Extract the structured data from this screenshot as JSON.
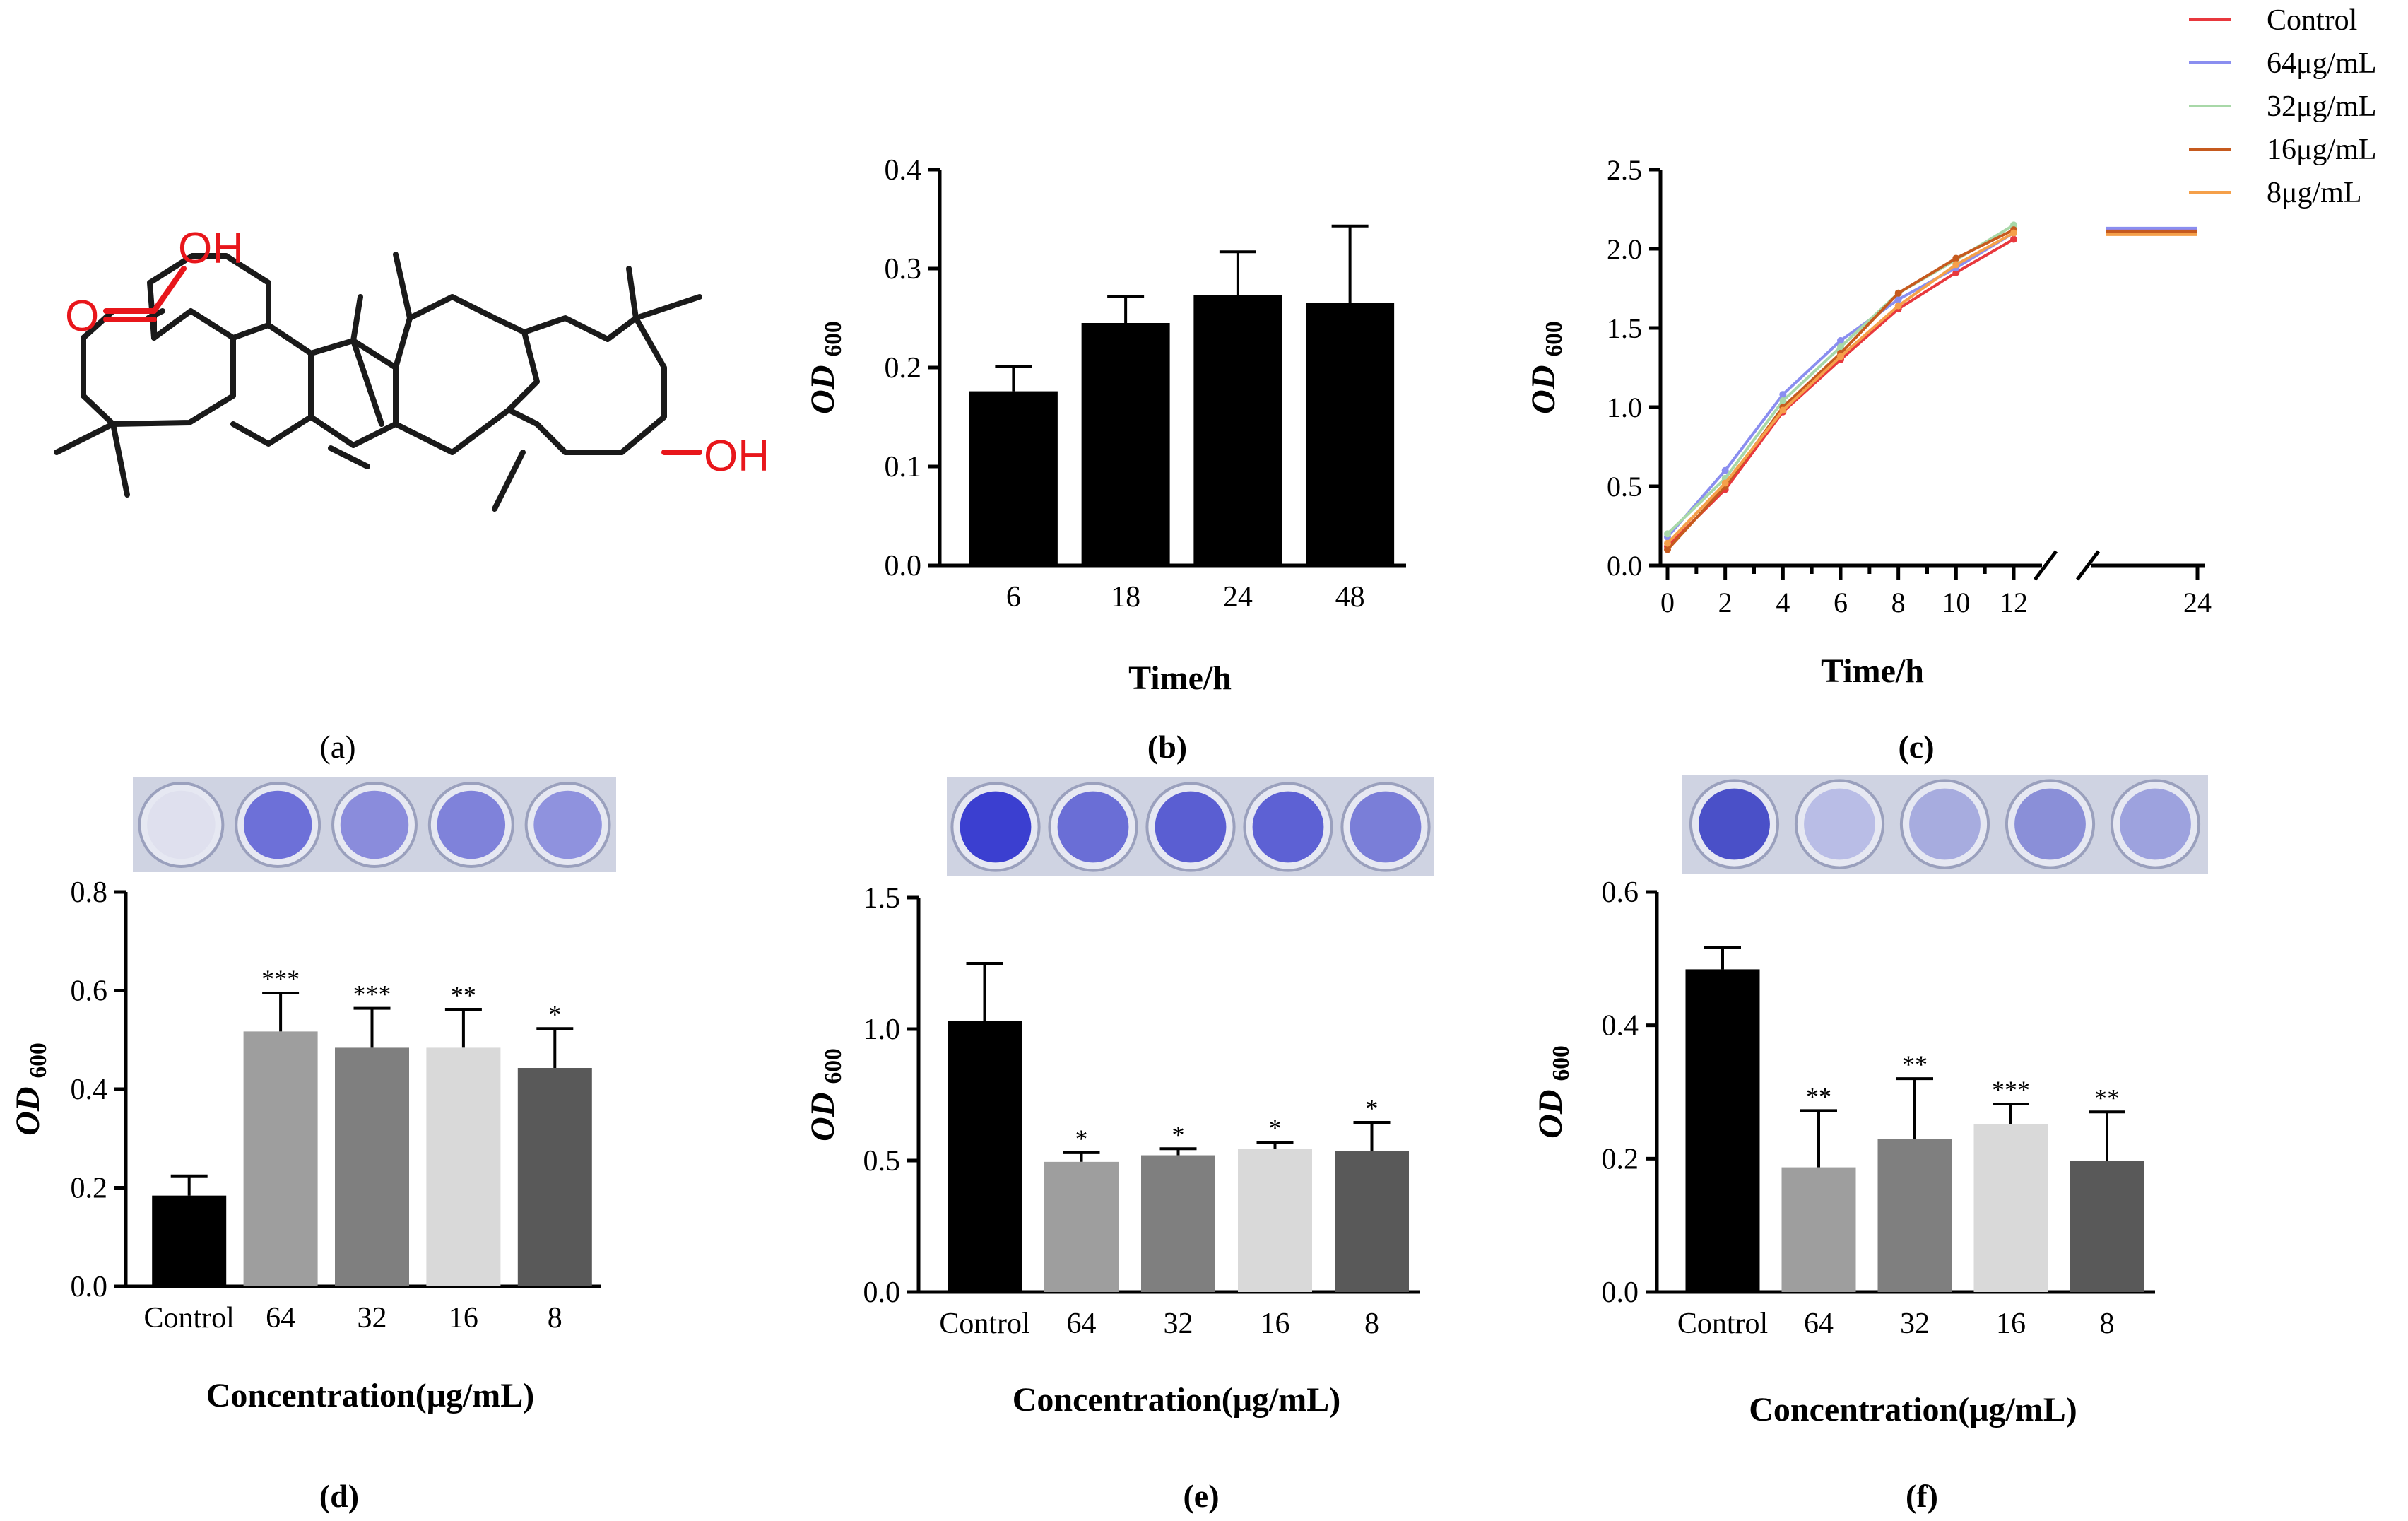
{
  "panel_labels": [
    "(a)",
    "(b)",
    "(c)",
    "(d)",
    "(e)",
    "(f)"
  ],
  "structure": {
    "groups": [
      "OH",
      "O",
      "OH"
    ],
    "colors": {
      "bond": "#1a1a1a",
      "hetero": "#e8161b"
    }
  },
  "colors": {
    "bar_black": "#000000",
    "bar_64": "#9e9e9e",
    "bar_32": "#7f7f7f",
    "bar_16": "#d9d9d9",
    "bar_8": "#595959",
    "stain": "#5a5ed0",
    "plate": "#cfd3e2"
  },
  "chart_data": [
    {
      "id": "b",
      "type": "bar",
      "ylabel_main": "OD",
      "ylabel_sub": "600",
      "xlabel": "Time/h",
      "categories": [
        "6",
        "18",
        "24",
        "48"
      ],
      "values": [
        0.176,
        0.245,
        0.273,
        0.265
      ],
      "errors": [
        0.025,
        0.027,
        0.044,
        0.078
      ],
      "ylim": [
        0,
        0.4
      ],
      "yticks": [
        "0.0",
        "0.1",
        "0.2",
        "0.3",
        "0.4"
      ],
      "bar_colors": [
        "#000000",
        "#000000",
        "#000000",
        "#000000"
      ],
      "significance": [
        "",
        "",
        "",
        ""
      ]
    },
    {
      "id": "c",
      "type": "line",
      "ylabel_main": "OD",
      "ylabel_sub": "600",
      "xlabel": "Time/h",
      "x": [
        0,
        2,
        4,
        6,
        8,
        10,
        12
      ],
      "x_break": 12,
      "x_late": 24,
      "xticks": [
        "0",
        "2",
        "4",
        "6",
        "8",
        "10",
        "12",
        "24"
      ],
      "ylim": [
        0,
        2.5
      ],
      "yticks": [
        "0.0",
        "0.5",
        "1.0",
        "1.5",
        "2.0",
        "2.5"
      ],
      "series": [
        {
          "name": "Control",
          "color": "#e8383d",
          "values": [
            0.12,
            0.48,
            0.97,
            1.3,
            1.62,
            1.85,
            2.06
          ],
          "late": 2.12
        },
        {
          "name": "64μg/mL",
          "color": "#8a8ef0",
          "values": [
            0.18,
            0.6,
            1.08,
            1.42,
            1.68,
            1.88,
            2.1
          ],
          "late": 2.13
        },
        {
          "name": "32μg/mL",
          "color": "#a8d8a8",
          "values": [
            0.2,
            0.55,
            1.04,
            1.38,
            1.72,
            1.93,
            2.15
          ],
          "late": 2.11
        },
        {
          "name": "16μg/mL",
          "color": "#c65a1e",
          "values": [
            0.1,
            0.5,
            1.0,
            1.34,
            1.72,
            1.94,
            2.12
          ],
          "late": 2.11
        },
        {
          "name": "8μg/mL",
          "color": "#f5a04a",
          "values": [
            0.14,
            0.52,
            0.98,
            1.32,
            1.64,
            1.9,
            2.1
          ],
          "late": 2.09
        }
      ]
    },
    {
      "id": "d",
      "type": "bar",
      "ylabel_main": "OD",
      "ylabel_sub": "600",
      "xlabel": "Concentration(μg/mL)",
      "categories": [
        "Control",
        "64",
        "32",
        "16",
        "8"
      ],
      "values": [
        0.184,
        0.517,
        0.484,
        0.484,
        0.443
      ],
      "errors": [
        0.04,
        0.078,
        0.08,
        0.078,
        0.08
      ],
      "ylim": [
        0,
        0.8
      ],
      "yticks": [
        "0.0",
        "0.2",
        "0.4",
        "0.6",
        "0.8"
      ],
      "bar_colors": [
        "#000000",
        "#9e9e9e",
        "#7f7f7f",
        "#d9d9d9",
        "#595959"
      ],
      "significance": [
        "",
        "***",
        "***",
        "**",
        "*"
      ]
    },
    {
      "id": "e",
      "type": "bar",
      "ylabel_main": "OD",
      "ylabel_sub": "600",
      "xlabel": "Concentration(μg/mL)",
      "categories": [
        "Control",
        "64",
        "32",
        "16",
        "8"
      ],
      "values": [
        1.03,
        0.495,
        0.52,
        0.545,
        0.535
      ],
      "errors": [
        0.22,
        0.035,
        0.025,
        0.025,
        0.11
      ],
      "ylim": [
        0,
        1.5
      ],
      "yticks": [
        "0.0",
        "0.5",
        "1.0",
        "1.5"
      ],
      "bar_colors": [
        "#000000",
        "#9e9e9e",
        "#7f7f7f",
        "#d9d9d9",
        "#595959"
      ],
      "significance": [
        "",
        "*",
        "*",
        "*",
        "*"
      ]
    },
    {
      "id": "f",
      "type": "bar",
      "ylabel_main": "OD",
      "ylabel_sub": "600",
      "xlabel": "Concentration(μg/mL)",
      "categories": [
        "Control",
        "64",
        "32",
        "16",
        "8"
      ],
      "values": [
        0.484,
        0.187,
        0.23,
        0.252,
        0.197
      ],
      "errors": [
        0.033,
        0.085,
        0.09,
        0.03,
        0.073
      ],
      "ylim": [
        0,
        0.6
      ],
      "yticks": [
        "0.0",
        "0.2",
        "0.4",
        "0.6"
      ],
      "bar_colors": [
        "#000000",
        "#9e9e9e",
        "#7f7f7f",
        "#d9d9d9",
        "#595959"
      ],
      "significance": [
        "",
        "**",
        "**",
        "***",
        "**"
      ]
    }
  ]
}
